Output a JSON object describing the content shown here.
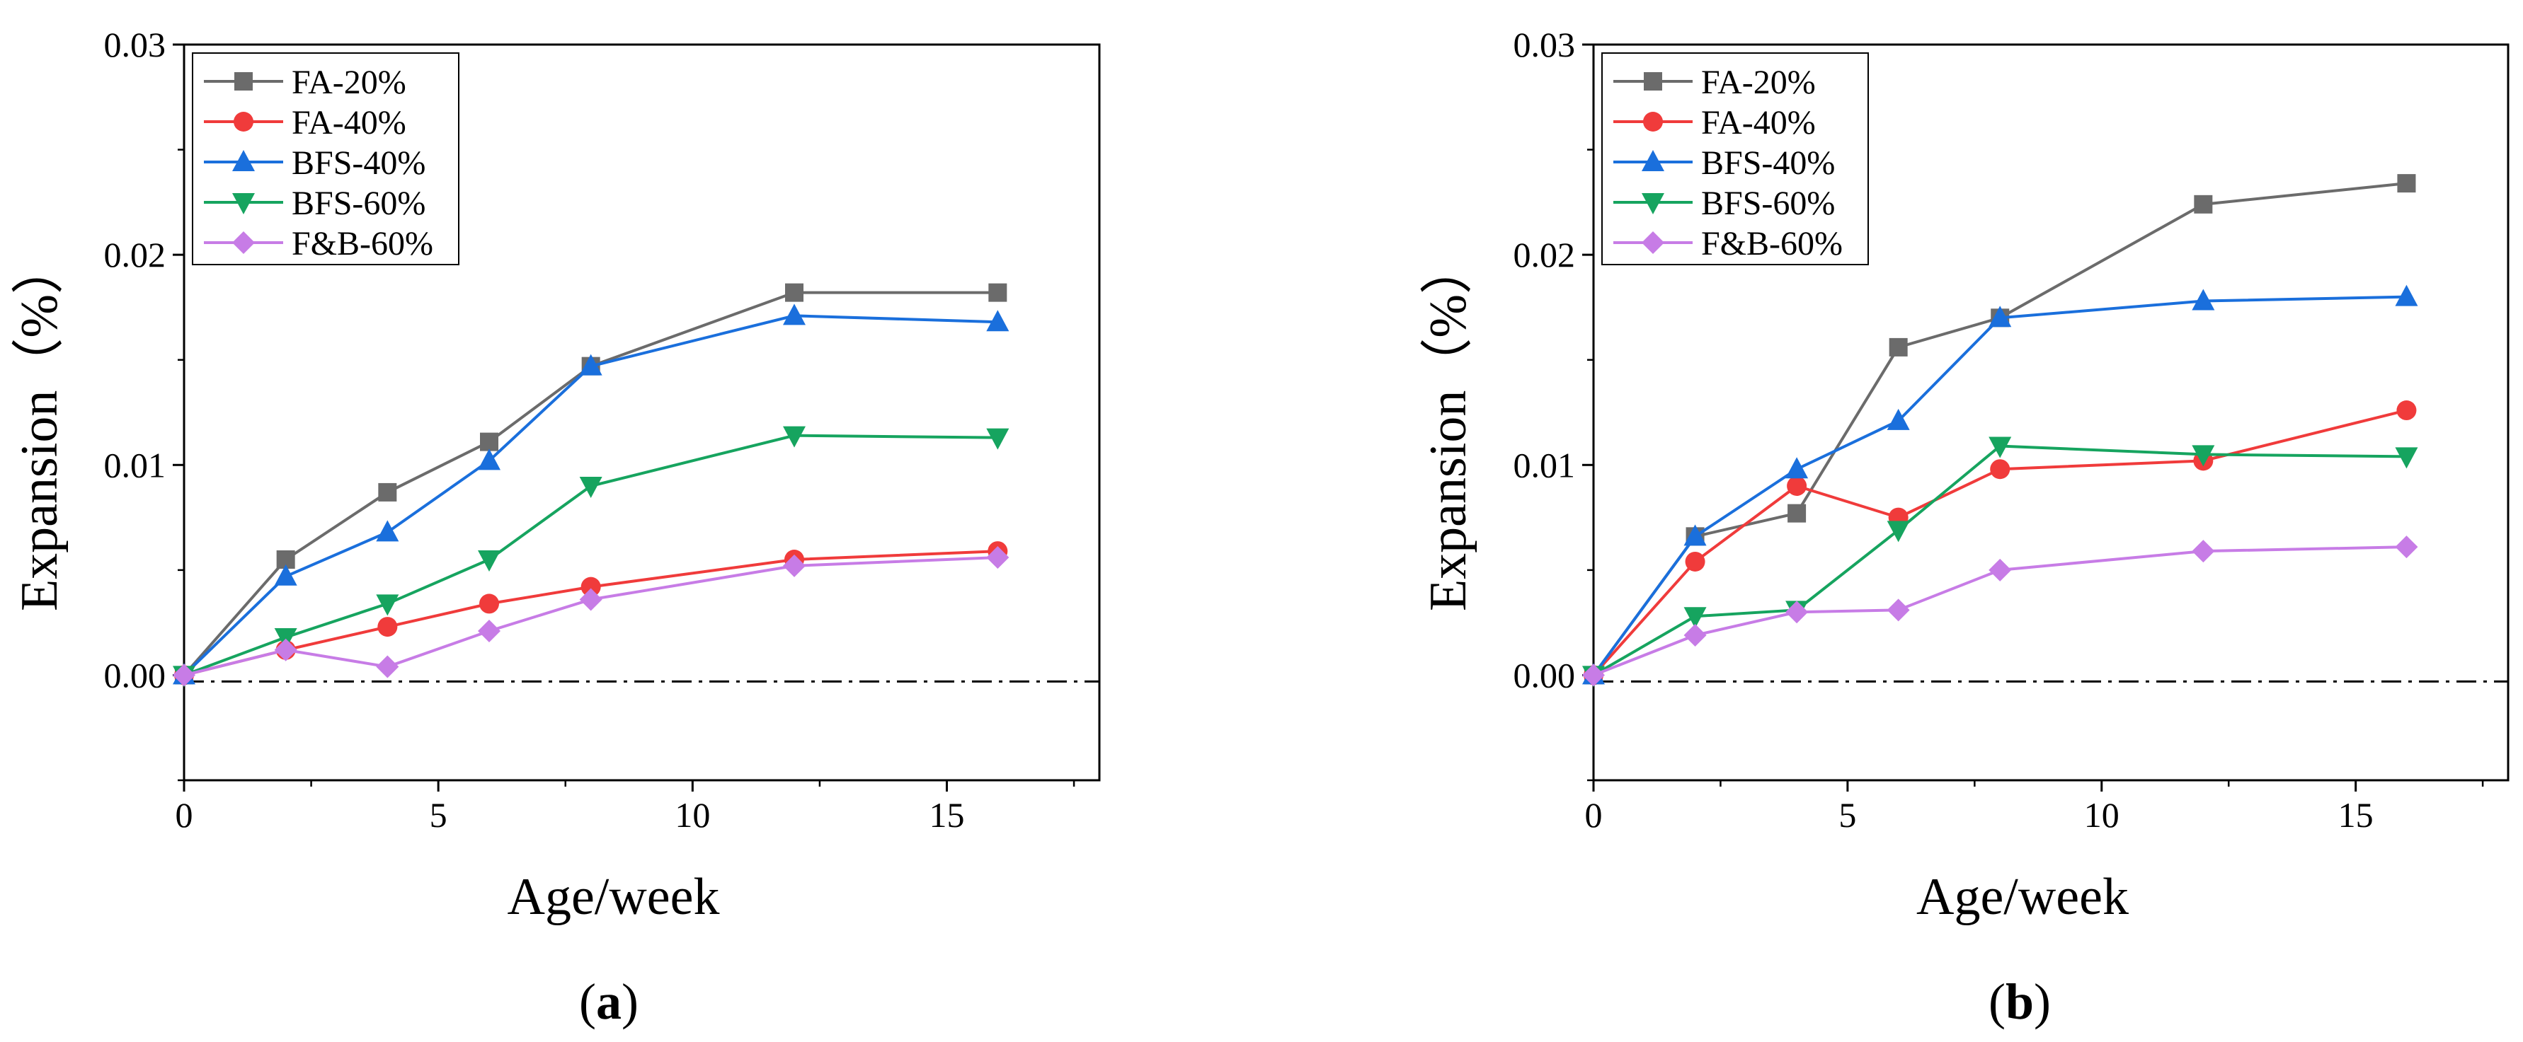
{
  "chart_data": [
    {
      "type": "line",
      "panel_label": "a",
      "xlabel": "Age/week",
      "ylabel": "Expansion（%）",
      "xlim": [
        0,
        18
      ],
      "ylim": [
        -0.005,
        0.03
      ],
      "xticks": [
        0,
        5,
        10,
        15
      ],
      "xtick_labels": [
        "0",
        "5",
        "10",
        "15"
      ],
      "yticks": [
        0,
        0.01,
        0.02,
        0.03
      ],
      "ytick_labels": [
        "0.00",
        "0.01",
        "0.02",
        "0.03"
      ],
      "reference_line": {
        "y": -0.0003,
        "style": "dash-dot"
      },
      "legend_position": "top-left",
      "grid": false,
      "series": [
        {
          "name": "FA-20%",
          "color": "#6b6b6b",
          "marker": "square",
          "x": [
            0,
            2,
            4,
            6,
            8,
            12,
            16
          ],
          "y": [
            0,
            0.0055,
            0.0087,
            0.0111,
            0.0147,
            0.0182,
            0.0182
          ]
        },
        {
          "name": "FA-40%",
          "color": "#f03b3b",
          "marker": "circle",
          "x": [
            0,
            2,
            4,
            6,
            8,
            12,
            16
          ],
          "y": [
            0,
            0.0012,
            0.0023,
            0.0034,
            0.0042,
            0.0055,
            0.0059
          ]
        },
        {
          "name": "BFS-40%",
          "color": "#1a6fdc",
          "marker": "triangle-up",
          "x": [
            0,
            2,
            4,
            6,
            8,
            12,
            16
          ],
          "y": [
            0,
            0.0047,
            0.0068,
            0.0102,
            0.0147,
            0.0171,
            0.0168
          ]
        },
        {
          "name": "BFS-60%",
          "color": "#16a45f",
          "marker": "triangle-down",
          "x": [
            0,
            2,
            4,
            6,
            8,
            12,
            16
          ],
          "y": [
            0,
            0.0018,
            0.0034,
            0.0055,
            0.009,
            0.0114,
            0.0113
          ]
        },
        {
          "name": "F&B-60%",
          "color": "#c77ce6",
          "marker": "diamond",
          "x": [
            0,
            2,
            4,
            6,
            8,
            12,
            16
          ],
          "y": [
            0,
            0.0012,
            0.0004,
            0.0021,
            0.0036,
            0.0052,
            0.0056
          ]
        }
      ]
    },
    {
      "type": "line",
      "panel_label": "b",
      "xlabel": "Age/week",
      "ylabel": "Expansion（%）",
      "xlim": [
        0,
        18
      ],
      "ylim": [
        -0.005,
        0.03
      ],
      "xticks": [
        0,
        5,
        10,
        15
      ],
      "xtick_labels": [
        "0",
        "5",
        "10",
        "15"
      ],
      "yticks": [
        0,
        0.01,
        0.02,
        0.03
      ],
      "ytick_labels": [
        "0.00",
        "0.01",
        "0.02",
        "0.03"
      ],
      "reference_line": {
        "y": -0.0003,
        "style": "dash-dot"
      },
      "legend_position": "top-left",
      "grid": false,
      "series": [
        {
          "name": "FA-20%",
          "color": "#6b6b6b",
          "marker": "square",
          "x": [
            0,
            2,
            4,
            6,
            8,
            12,
            16
          ],
          "y": [
            0,
            0.0066,
            0.0077,
            0.0156,
            0.017,
            0.0224,
            0.0234
          ]
        },
        {
          "name": "FA-40%",
          "color": "#f03b3b",
          "marker": "circle",
          "x": [
            0,
            2,
            4,
            6,
            8,
            12,
            16
          ],
          "y": [
            0,
            0.0054,
            0.009,
            0.0075,
            0.0098,
            0.0102,
            0.0126
          ]
        },
        {
          "name": "BFS-40%",
          "color": "#1a6fdc",
          "marker": "triangle-up",
          "x": [
            0,
            2,
            4,
            6,
            8,
            12,
            16
          ],
          "y": [
            0,
            0.0066,
            0.0098,
            0.0121,
            0.017,
            0.0178,
            0.018
          ]
        },
        {
          "name": "BFS-60%",
          "color": "#16a45f",
          "marker": "triangle-down",
          "x": [
            0,
            2,
            4,
            6,
            8,
            12,
            16
          ],
          "y": [
            0,
            0.0028,
            0.0031,
            0.0069,
            0.0109,
            0.0105,
            0.0104
          ]
        },
        {
          "name": "F&B-60%",
          "color": "#c77ce6",
          "marker": "diamond",
          "x": [
            0,
            2,
            4,
            6,
            8,
            12,
            16
          ],
          "y": [
            0,
            0.0019,
            0.003,
            0.0031,
            0.005,
            0.0059,
            0.0061
          ]
        }
      ]
    }
  ]
}
